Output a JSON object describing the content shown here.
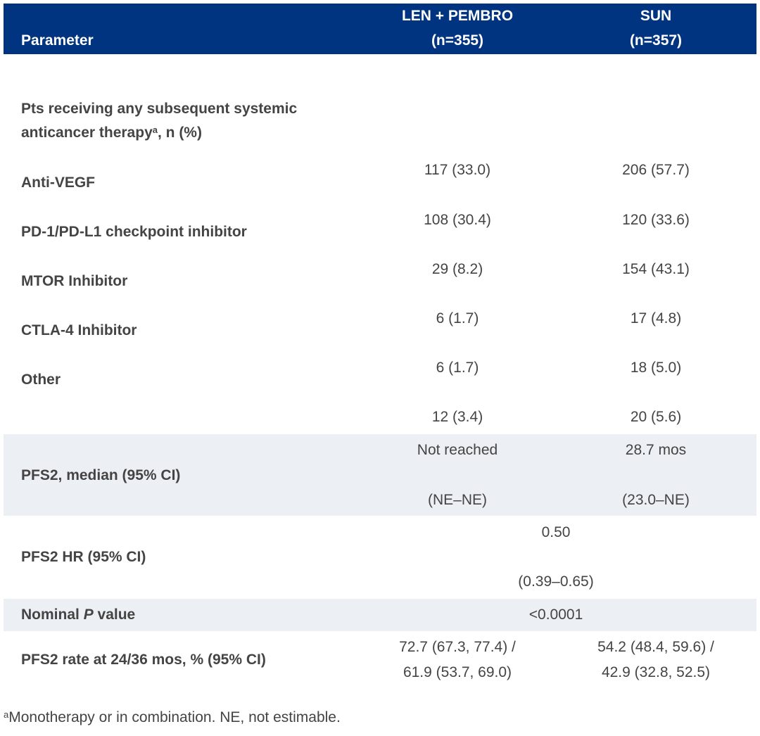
{
  "header": {
    "param": "Parameter",
    "col1_line1": "LEN + PEMBRO",
    "col1_line2": "(n=355)",
    "col2_line1": "SUN",
    "col2_line2": "(n=357)"
  },
  "section": {
    "line1": "Pts receiving any subsequent systemic",
    "line2a": "anticancer therapy",
    "sup": "a",
    "line2b": ", n (%)"
  },
  "rows": [
    {
      "label": "Anti-VEGF",
      "c1": "117 (33.0)",
      "c2": "206 (57.7)"
    },
    {
      "label": "PD-1/PD-L1 checkpoint inhibitor",
      "c1": "108 (30.4)",
      "c2": "120 (33.6)"
    },
    {
      "label": "MTOR Inhibitor",
      "c1": "29 (8.2)",
      "c2": "154 (43.1)"
    },
    {
      "label": "CTLA-4 Inhibitor",
      "c1": "6 (1.7)",
      "c2": "17 (4.8)"
    },
    {
      "label": "Other",
      "c1": "6 (1.7)",
      "c2": "18 (5.0)"
    },
    {
      "label": "",
      "c1": "12 (3.4)",
      "c2": "20 (5.6)"
    }
  ],
  "pfs2_median": {
    "label": "PFS2, median (95% CI)",
    "c1a": "Not reached",
    "c1b": "(NE–NE)",
    "c2a": "28.7 mos",
    "c2b": "(23.0–NE)"
  },
  "pfs2_hr": {
    "label": "PFS2 HR (95% CI)",
    "a": "0.50",
    "b": "(0.39–0.65)"
  },
  "p_value": {
    "label_a": "Nominal ",
    "label_p": "P",
    "label_b": " value",
    "value": "<0.0001"
  },
  "pfs2_rate": {
    "label": "PFS2 rate at 24/36 mos, % (95% CI)",
    "c1a": "72.7 (67.3, 77.4) /",
    "c1b": "61.9 (53.7, 69.0)",
    "c2a": "54.2 (48.4, 59.6) /",
    "c2b": "42.9 (32.8, 52.5)"
  },
  "footnote": {
    "sup": "a",
    "text": "Monotherapy or in combination. NE, not estimable."
  },
  "colors": {
    "header_bg": "#003380",
    "shade_bg": "#eceff4",
    "text": "#444444"
  }
}
